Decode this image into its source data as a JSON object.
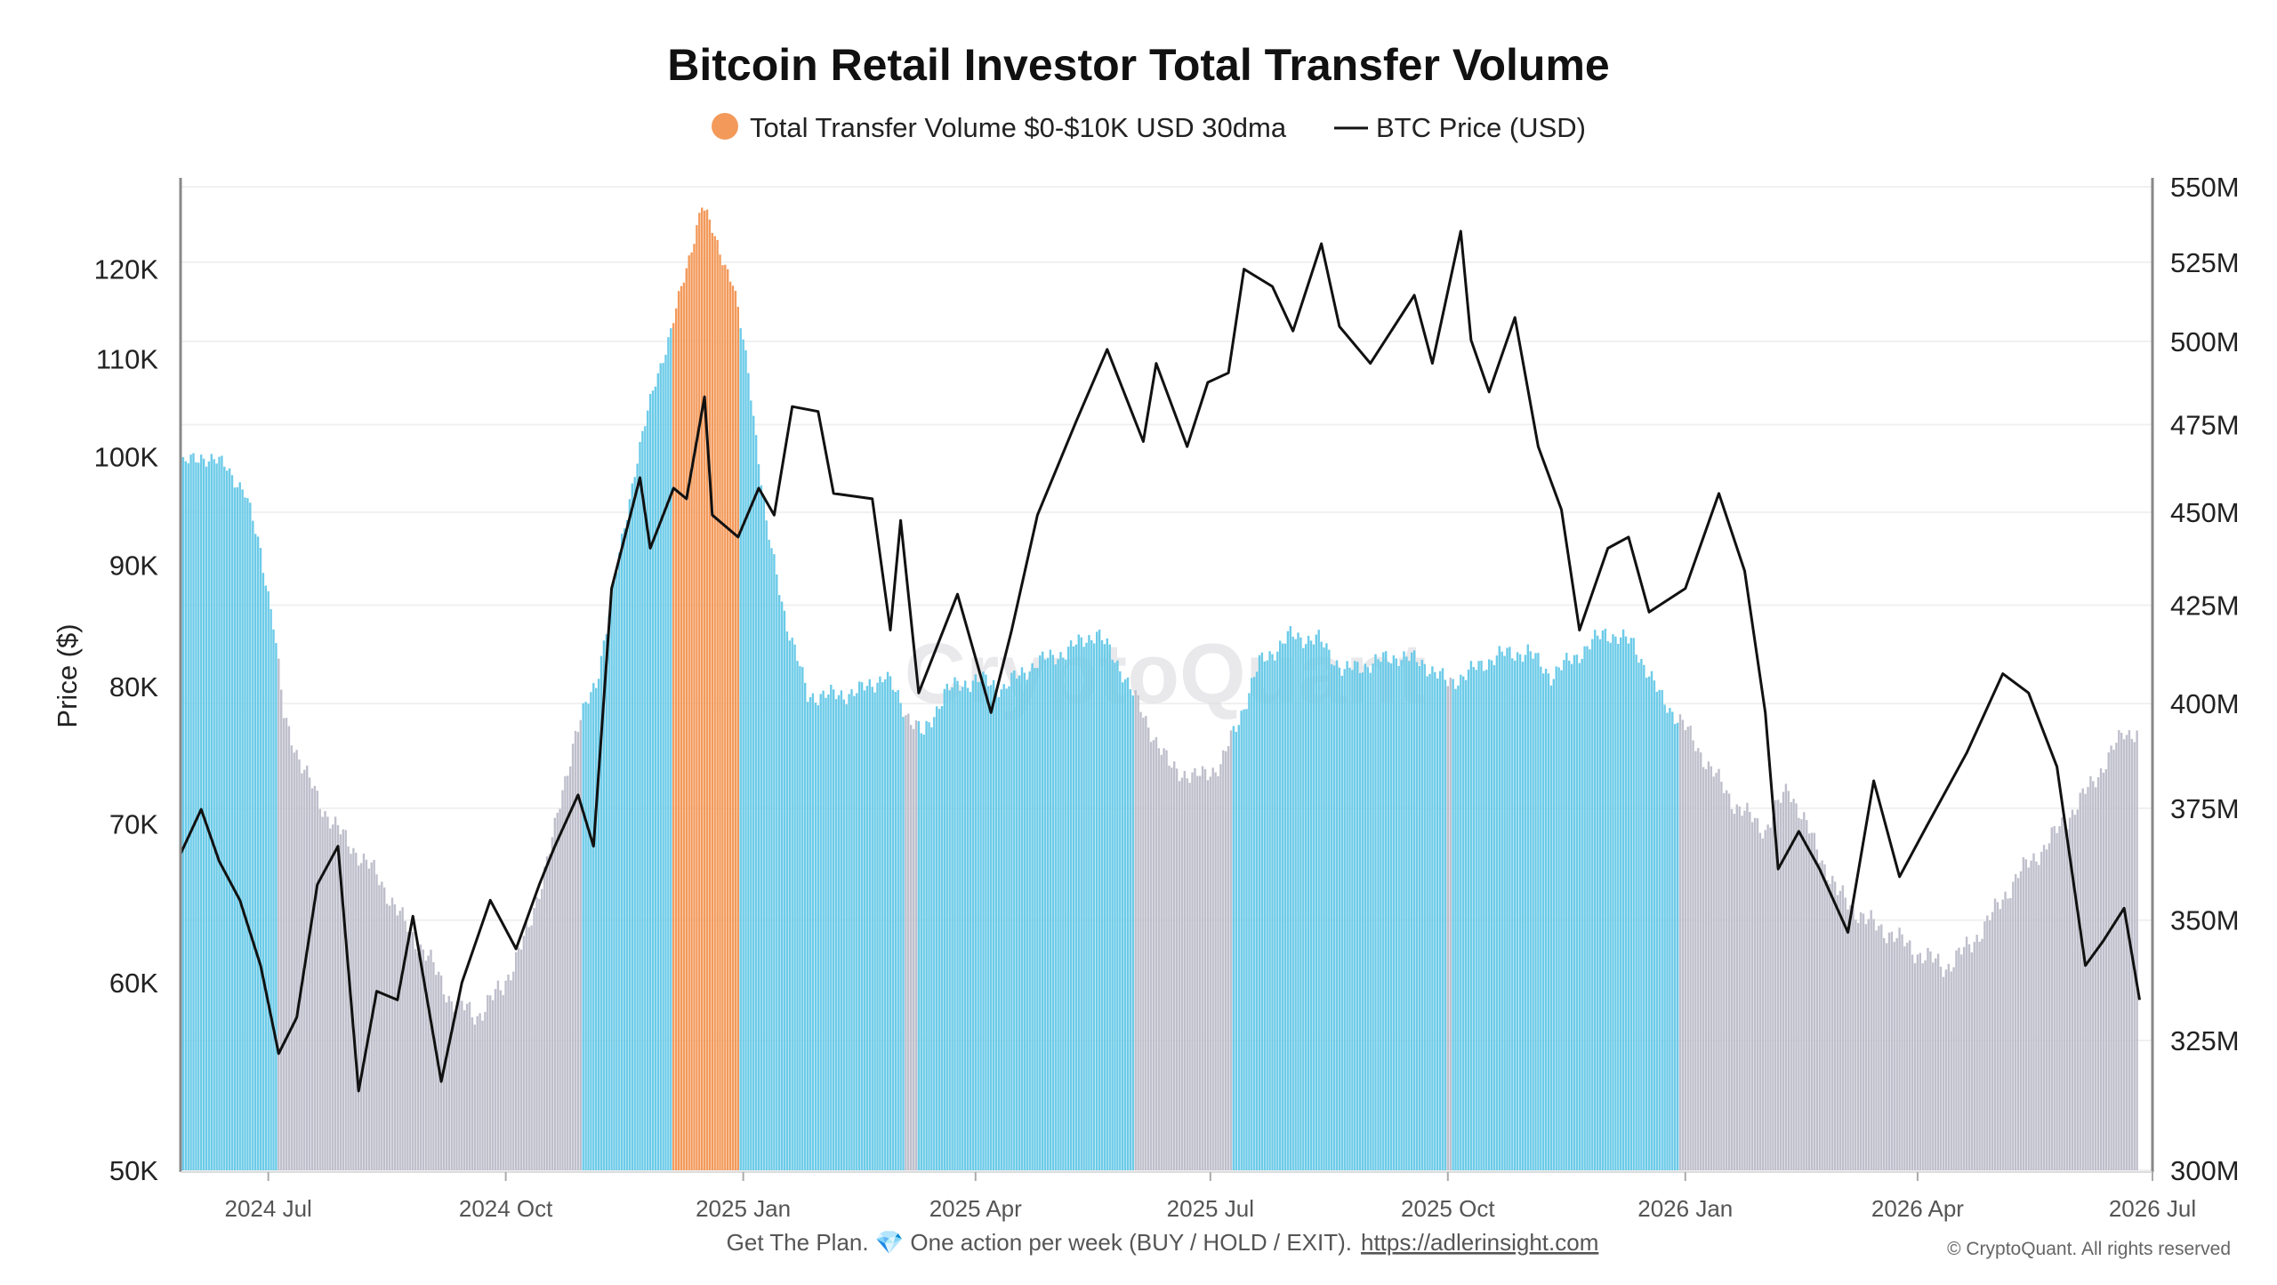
{
  "chart_data": {
    "type": "bar+line",
    "title": "Bitcoin Retail Investor Total Transfer Volume",
    "legend": [
      {
        "label": "Total Transfer Volume $0-$10K USD 30dma",
        "marker": "dot",
        "color": "#f39a5b"
      },
      {
        "label": "BTC Price (USD)",
        "marker": "line",
        "color": "#111111"
      }
    ],
    "legend_position": "top-center",
    "left_axis": {
      "label": "Price ($)",
      "scale": "log",
      "range": [
        50000,
        130000
      ],
      "ticks": [
        {
          "value": 50000,
          "label": "50K"
        },
        {
          "value": 60000,
          "label": "60K"
        },
        {
          "value": 70000,
          "label": "70K"
        },
        {
          "value": 80000,
          "label": "80K"
        },
        {
          "value": 90000,
          "label": "90K"
        },
        {
          "value": 100000,
          "label": "100K"
        },
        {
          "value": 110000,
          "label": "110K"
        },
        {
          "value": 120000,
          "label": "120K"
        }
      ]
    },
    "right_axis": {
      "label": "",
      "scale": "log",
      "range": [
        300,
        550
      ],
      "unit": "M",
      "ticks": [
        {
          "value": 300,
          "label": "300M"
        },
        {
          "value": 325,
          "label": "325M"
        },
        {
          "value": 350,
          "label": "350M"
        },
        {
          "value": 375,
          "label": "375M"
        },
        {
          "value": 400,
          "label": "400M"
        },
        {
          "value": 425,
          "label": "425M"
        },
        {
          "value": 450,
          "label": "450M"
        },
        {
          "value": 475,
          "label": "475M"
        },
        {
          "value": 500,
          "label": "500M"
        },
        {
          "value": 525,
          "label": "525M"
        },
        {
          "value": 550,
          "label": "550M"
        }
      ]
    },
    "x_axis": {
      "range": [
        "2024-05-28",
        "2026-07-01"
      ],
      "ticks": [
        {
          "value": "2024-07-01",
          "label": "2024 Jul"
        },
        {
          "value": "2024-10-01",
          "label": "2024 Oct"
        },
        {
          "value": "2025-01-01",
          "label": "2025 Jan"
        },
        {
          "value": "2025-04-01",
          "label": "2025 Apr"
        },
        {
          "value": "2025-07-01",
          "label": "2025 Jul"
        },
        {
          "value": "2025-10-01",
          "label": "2025 Oct"
        },
        {
          "value": "2026-01-01",
          "label": "2026 Jan"
        },
        {
          "value": "2026-04-01",
          "label": "2026 Apr"
        },
        {
          "value": "2026-07-01",
          "label": "2026 Jul"
        }
      ]
    },
    "grid": true,
    "volume_series": {
      "name": "Total Transfer Volume $0-$10K USD 30dma",
      "unit": "M",
      "color_bands": [
        {
          "from": "2024-05-28",
          "to": "2024-07-05",
          "color": "#6ccbe8"
        },
        {
          "from": "2024-07-05",
          "to": "2024-10-31",
          "color": "#bfbfcc"
        },
        {
          "from": "2024-10-31",
          "to": "2024-12-05",
          "color": "#6ccbe8"
        },
        {
          "from": "2024-12-05",
          "to": "2024-12-31",
          "color": "#f39a5b"
        },
        {
          "from": "2024-12-31",
          "to": "2025-03-05",
          "color": "#6ccbe8"
        },
        {
          "from": "2025-03-05",
          "to": "2025-03-10",
          "color": "#bfbfcc"
        },
        {
          "from": "2025-03-10",
          "to": "2025-06-02",
          "color": "#6ccbe8"
        },
        {
          "from": "2025-06-02",
          "to": "2025-07-10",
          "color": "#bfbfcc"
        },
        {
          "from": "2025-07-10",
          "to": "2025-10-01",
          "color": "#6ccbe8"
        },
        {
          "from": "2025-10-01",
          "to": "2025-10-03",
          "color": "#bfbfcc"
        },
        {
          "from": "2025-10-03",
          "to": "2025-12-30",
          "color": "#6ccbe8"
        },
        {
          "from": "2025-12-30",
          "to": "2026-07-01",
          "color": "#bfbfcc"
        }
      ],
      "points": [
        {
          "x": "2024-05-28",
          "y": 463
        },
        {
          "x": "2024-06-05",
          "y": 466
        },
        {
          "x": "2024-06-15",
          "y": 463
        },
        {
          "x": "2024-06-22",
          "y": 455
        },
        {
          "x": "2024-06-28",
          "y": 440
        },
        {
          "x": "2024-07-03",
          "y": 420
        },
        {
          "x": "2024-07-07",
          "y": 397
        },
        {
          "x": "2024-07-14",
          "y": 385
        },
        {
          "x": "2024-07-22",
          "y": 375
        },
        {
          "x": "2024-08-01",
          "y": 367
        },
        {
          "x": "2024-08-12",
          "y": 360
        },
        {
          "x": "2024-08-22",
          "y": 350
        },
        {
          "x": "2024-09-01",
          "y": 342
        },
        {
          "x": "2024-09-10",
          "y": 333
        },
        {
          "x": "2024-09-20",
          "y": 330
        },
        {
          "x": "2024-09-30",
          "y": 336
        },
        {
          "x": "2024-10-10",
          "y": 348
        },
        {
          "x": "2024-10-20",
          "y": 370
        },
        {
          "x": "2024-10-28",
          "y": 393
        },
        {
          "x": "2024-11-05",
          "y": 405
        },
        {
          "x": "2024-11-12",
          "y": 430
        },
        {
          "x": "2024-11-20",
          "y": 462
        },
        {
          "x": "2024-11-28",
          "y": 488
        },
        {
          "x": "2024-12-04",
          "y": 503
        },
        {
          "x": "2024-12-10",
          "y": 523
        },
        {
          "x": "2024-12-16",
          "y": 544
        },
        {
          "x": "2024-12-22",
          "y": 531
        },
        {
          "x": "2024-12-28",
          "y": 518
        },
        {
          "x": "2025-01-03",
          "y": 491
        },
        {
          "x": "2025-01-10",
          "y": 446
        },
        {
          "x": "2025-01-18",
          "y": 420
        },
        {
          "x": "2025-01-26",
          "y": 402
        },
        {
          "x": "2025-02-05",
          "y": 402
        },
        {
          "x": "2025-02-15",
          "y": 403
        },
        {
          "x": "2025-02-25",
          "y": 407
        },
        {
          "x": "2025-03-05",
          "y": 398
        },
        {
          "x": "2025-03-12",
          "y": 392
        },
        {
          "x": "2025-03-20",
          "y": 403
        },
        {
          "x": "2025-04-01",
          "y": 406
        },
        {
          "x": "2025-04-12",
          "y": 404
        },
        {
          "x": "2025-04-24",
          "y": 410
        },
        {
          "x": "2025-05-06",
          "y": 413
        },
        {
          "x": "2025-05-18",
          "y": 418
        },
        {
          "x": "2025-05-28",
          "y": 408
        },
        {
          "x": "2025-06-05",
          "y": 397
        },
        {
          "x": "2025-06-15",
          "y": 385
        },
        {
          "x": "2025-06-25",
          "y": 382
        },
        {
          "x": "2025-07-05",
          "y": 385
        },
        {
          "x": "2025-07-12",
          "y": 396
        },
        {
          "x": "2025-07-20",
          "y": 410
        },
        {
          "x": "2025-08-01",
          "y": 417
        },
        {
          "x": "2025-08-12",
          "y": 416
        },
        {
          "x": "2025-08-22",
          "y": 408
        },
        {
          "x": "2025-09-01",
          "y": 410
        },
        {
          "x": "2025-09-12",
          "y": 412
        },
        {
          "x": "2025-09-22",
          "y": 410
        },
        {
          "x": "2025-10-01",
          "y": 405
        },
        {
          "x": "2025-10-10",
          "y": 408
        },
        {
          "x": "2025-10-20",
          "y": 412
        },
        {
          "x": "2025-11-01",
          "y": 413
        },
        {
          "x": "2025-11-10",
          "y": 407
        },
        {
          "x": "2025-11-20",
          "y": 412
        },
        {
          "x": "2025-12-01",
          "y": 418
        },
        {
          "x": "2025-12-12",
          "y": 415
        },
        {
          "x": "2025-12-22",
          "y": 402
        },
        {
          "x": "2025-12-31",
          "y": 395
        },
        {
          "x": "2026-01-10",
          "y": 385
        },
        {
          "x": "2026-01-20",
          "y": 376
        },
        {
          "x": "2026-02-01",
          "y": 370
        },
        {
          "x": "2026-02-10",
          "y": 380
        },
        {
          "x": "2026-02-20",
          "y": 367
        },
        {
          "x": "2026-03-01",
          "y": 356
        },
        {
          "x": "2026-03-12",
          "y": 350
        },
        {
          "x": "2026-03-22",
          "y": 347
        },
        {
          "x": "2026-04-01",
          "y": 343
        },
        {
          "x": "2026-04-12",
          "y": 340
        },
        {
          "x": "2026-04-22",
          "y": 345
        },
        {
          "x": "2026-05-01",
          "y": 352
        },
        {
          "x": "2026-05-10",
          "y": 360
        },
        {
          "x": "2026-05-20",
          "y": 366
        },
        {
          "x": "2026-06-01",
          "y": 375
        },
        {
          "x": "2026-06-10",
          "y": 383
        },
        {
          "x": "2026-06-20",
          "y": 393
        },
        {
          "x": "2026-06-25",
          "y": 393
        }
      ]
    },
    "price_series": {
      "name": "BTC Price (USD)",
      "color": "#111111",
      "points": [
        {
          "x": "2024-05-28",
          "y": 68000
        },
        {
          "x": "2024-06-05",
          "y": 71000
        },
        {
          "x": "2024-06-12",
          "y": 67500
        },
        {
          "x": "2024-06-20",
          "y": 65000
        },
        {
          "x": "2024-06-28",
          "y": 61000
        },
        {
          "x": "2024-07-05",
          "y": 56000
        },
        {
          "x": "2024-07-12",
          "y": 58000
        },
        {
          "x": "2024-07-20",
          "y": 66000
        },
        {
          "x": "2024-07-28",
          "y": 68500
        },
        {
          "x": "2024-08-05",
          "y": 54000
        },
        {
          "x": "2024-08-12",
          "y": 59500
        },
        {
          "x": "2024-08-20",
          "y": 59000
        },
        {
          "x": "2024-08-26",
          "y": 64000
        },
        {
          "x": "2024-09-06",
          "y": 54500
        },
        {
          "x": "2024-09-14",
          "y": 60000
        },
        {
          "x": "2024-09-25",
          "y": 65000
        },
        {
          "x": "2024-10-05",
          "y": 62000
        },
        {
          "x": "2024-10-14",
          "y": 66000
        },
        {
          "x": "2024-10-20",
          "y": 68500
        },
        {
          "x": "2024-10-29",
          "y": 72000
        },
        {
          "x": "2024-11-04",
          "y": 68500
        },
        {
          "x": "2024-11-11",
          "y": 88000
        },
        {
          "x": "2024-11-22",
          "y": 98000
        },
        {
          "x": "2024-11-26",
          "y": 91500
        },
        {
          "x": "2024-12-05",
          "y": 97000
        },
        {
          "x": "2024-12-10",
          "y": 96000
        },
        {
          "x": "2024-12-17",
          "y": 106000
        },
        {
          "x": "2024-12-20",
          "y": 94500
        },
        {
          "x": "2024-12-30",
          "y": 92500
        },
        {
          "x": "2025-01-07",
          "y": 97000
        },
        {
          "x": "2025-01-13",
          "y": 94500
        },
        {
          "x": "2025-01-20",
          "y": 105000
        },
        {
          "x": "2025-01-30",
          "y": 104500
        },
        {
          "x": "2025-02-05",
          "y": 96500
        },
        {
          "x": "2025-02-20",
          "y": 96000
        },
        {
          "x": "2025-02-27",
          "y": 84500
        },
        {
          "x": "2025-03-03",
          "y": 94000
        },
        {
          "x": "2025-03-10",
          "y": 79500
        },
        {
          "x": "2025-03-25",
          "y": 87500
        },
        {
          "x": "2025-04-07",
          "y": 78000
        },
        {
          "x": "2025-04-15",
          "y": 84500
        },
        {
          "x": "2025-04-25",
          "y": 94500
        },
        {
          "x": "2025-05-10",
          "y": 103500
        },
        {
          "x": "2025-05-22",
          "y": 111000
        },
        {
          "x": "2025-06-05",
          "y": 101500
        },
        {
          "x": "2025-06-10",
          "y": 109500
        },
        {
          "x": "2025-06-22",
          "y": 101000
        },
        {
          "x": "2025-06-30",
          "y": 107500
        },
        {
          "x": "2025-07-08",
          "y": 108500
        },
        {
          "x": "2025-07-14",
          "y": 120000
        },
        {
          "x": "2025-07-25",
          "y": 118000
        },
        {
          "x": "2025-08-02",
          "y": 113000
        },
        {
          "x": "2025-08-13",
          "y": 123000
        },
        {
          "x": "2025-08-20",
          "y": 113500
        },
        {
          "x": "2025-09-01",
          "y": 109500
        },
        {
          "x": "2025-09-18",
          "y": 117000
        },
        {
          "x": "2025-09-25",
          "y": 109500
        },
        {
          "x": "2025-10-06",
          "y": 124500
        },
        {
          "x": "2025-10-10",
          "y": 112000
        },
        {
          "x": "2025-10-17",
          "y": 106500
        },
        {
          "x": "2025-10-27",
          "y": 114500
        },
        {
          "x": "2025-11-05",
          "y": 101000
        },
        {
          "x": "2025-11-14",
          "y": 95000
        },
        {
          "x": "2025-11-21",
          "y": 84500
        },
        {
          "x": "2025-12-02",
          "y": 91500
        },
        {
          "x": "2025-12-10",
          "y": 92500
        },
        {
          "x": "2025-12-18",
          "y": 86000
        },
        {
          "x": "2026-01-01",
          "y": 88000
        },
        {
          "x": "2026-01-14",
          "y": 96500
        },
        {
          "x": "2026-01-24",
          "y": 89500
        },
        {
          "x": "2026-02-01",
          "y": 78000
        },
        {
          "x": "2026-02-06",
          "y": 67000
        },
        {
          "x": "2026-02-14",
          "y": 69500
        },
        {
          "x": "2026-02-22",
          "y": 67000
        },
        {
          "x": "2026-03-05",
          "y": 63000
        },
        {
          "x": "2026-03-15",
          "y": 73000
        },
        {
          "x": "2026-03-25",
          "y": 66500
        },
        {
          "x": "2026-04-05",
          "y": 70000
        },
        {
          "x": "2026-04-20",
          "y": 75000
        },
        {
          "x": "2026-05-04",
          "y": 81000
        },
        {
          "x": "2026-05-14",
          "y": 79500
        },
        {
          "x": "2026-05-25",
          "y": 74000
        },
        {
          "x": "2026-06-05",
          "y": 61000
        },
        {
          "x": "2026-06-12",
          "y": 62500
        },
        {
          "x": "2026-06-20",
          "y": 64500
        },
        {
          "x": "2026-06-26",
          "y": 59000
        }
      ]
    }
  },
  "watermark": "CryptoQuant",
  "footer": {
    "text": "Get The Plan. 💎 One action per week (BUY / HOLD / EXIT).",
    "link": "https://adlerinsight.com"
  },
  "copyright": "© CryptoQuant. All rights reserved"
}
